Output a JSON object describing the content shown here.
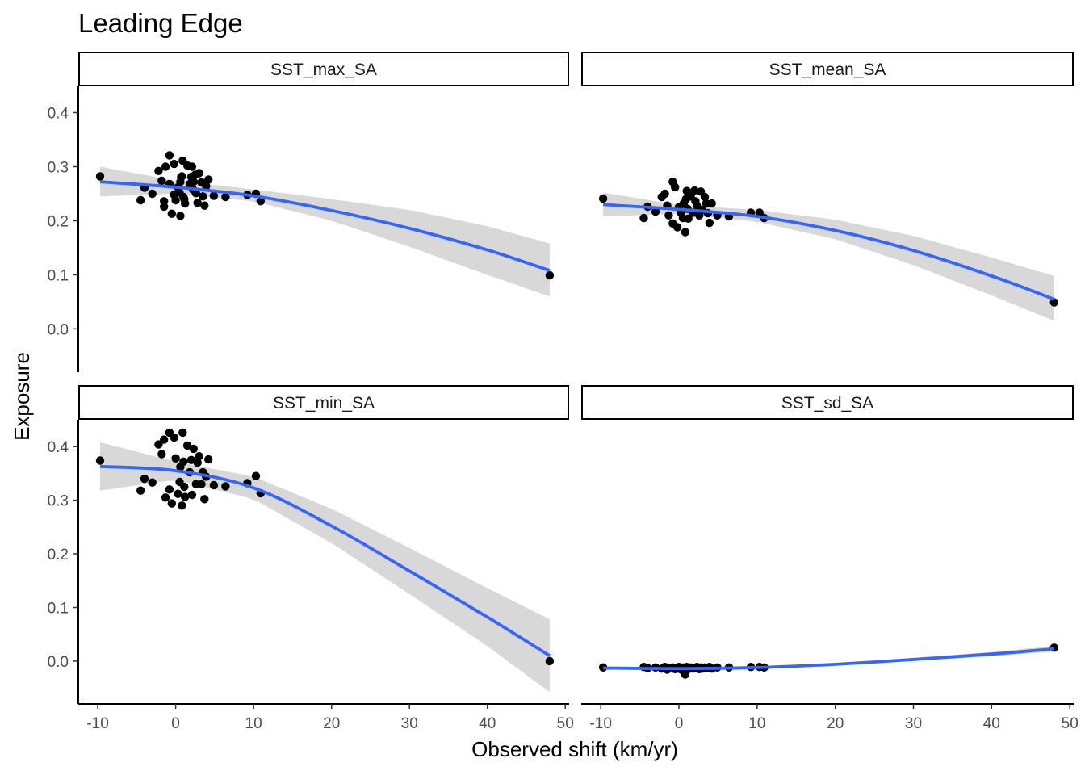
{
  "chart_data": {
    "type": "scatter",
    "title": "Leading Edge",
    "xlabel": "Observed shift (km/yr)",
    "ylabel": "Exposure",
    "xlim": [
      -12.5,
      50.5
    ],
    "ylim": [
      -0.08,
      0.45
    ],
    "x_ticks": [
      -10,
      0,
      10,
      20,
      30,
      40,
      50
    ],
    "x_tick_labels": [
      "-10",
      "0",
      "10",
      "20",
      "30",
      "40",
      "50"
    ],
    "y_ticks": [
      0.0,
      0.1,
      0.2,
      0.3,
      0.4
    ],
    "y_tick_labels": [
      "0.0",
      "0.1",
      "0.2",
      "0.3",
      "0.4"
    ],
    "grid": false,
    "colors": {
      "points": "#000000",
      "smooth": "#3366ff",
      "ribbon": "#bebebe"
    },
    "panels": [
      {
        "strip": "SST_max_SA",
        "points": [
          [
            -9.7,
            0.282
          ],
          [
            -4.5,
            0.238
          ],
          [
            -4.0,
            0.261
          ],
          [
            -3.0,
            0.25
          ],
          [
            -2.2,
            0.292
          ],
          [
            -1.8,
            0.274
          ],
          [
            -1.5,
            0.236
          ],
          [
            -1.5,
            0.226
          ],
          [
            -1.3,
            0.3
          ],
          [
            -0.8,
            0.321
          ],
          [
            -0.8,
            0.268
          ],
          [
            -0.5,
            0.213
          ],
          [
            -0.2,
            0.248
          ],
          [
            -0.2,
            0.305
          ],
          [
            0.0,
            0.238
          ],
          [
            0.3,
            0.262
          ],
          [
            0.5,
            0.252
          ],
          [
            0.6,
            0.272
          ],
          [
            0.7,
            0.281
          ],
          [
            0.8,
            0.282
          ],
          [
            0.9,
            0.311
          ],
          [
            0.6,
            0.209
          ],
          [
            1.0,
            0.244
          ],
          [
            1.1,
            0.24
          ],
          [
            1.2,
            0.232
          ],
          [
            1.5,
            0.302
          ],
          [
            1.8,
            0.268
          ],
          [
            2.0,
            0.281
          ],
          [
            2.1,
            0.3
          ],
          [
            2.2,
            0.258
          ],
          [
            2.3,
            0.272
          ],
          [
            2.5,
            0.285
          ],
          [
            2.6,
            0.251
          ],
          [
            2.8,
            0.233
          ],
          [
            3.0,
            0.288
          ],
          [
            3.3,
            0.271
          ],
          [
            3.5,
            0.245
          ],
          [
            3.7,
            0.228
          ],
          [
            3.9,
            0.264
          ],
          [
            4.2,
            0.276
          ],
          [
            4.9,
            0.246
          ],
          [
            6.4,
            0.244
          ],
          [
            9.2,
            0.248
          ],
          [
            10.3,
            0.25
          ],
          [
            10.9,
            0.236
          ],
          [
            48.0,
            0.099
          ]
        ],
        "smooth": [
          [
            -9.7,
            0.272
          ],
          [
            0,
            0.262
          ],
          [
            10,
            0.246
          ],
          [
            20,
            0.219
          ],
          [
            30,
            0.186
          ],
          [
            40,
            0.146
          ],
          [
            48.0,
            0.108
          ]
        ],
        "ribbon_lower": [
          [
            -9.7,
            0.245
          ],
          [
            0,
            0.25
          ],
          [
            10,
            0.236
          ],
          [
            20,
            0.2
          ],
          [
            30,
            0.152
          ],
          [
            40,
            0.1
          ],
          [
            48.0,
            0.06
          ]
        ],
        "ribbon_upper": [
          [
            -9.7,
            0.3
          ],
          [
            0,
            0.274
          ],
          [
            10,
            0.258
          ],
          [
            20,
            0.24
          ],
          [
            30,
            0.22
          ],
          [
            40,
            0.19
          ],
          [
            48.0,
            0.158
          ]
        ]
      },
      {
        "strip": "SST_mean_SA",
        "points": [
          [
            -9.7,
            0.241
          ],
          [
            -4.5,
            0.205
          ],
          [
            -4.0,
            0.226
          ],
          [
            -3.0,
            0.217
          ],
          [
            -2.2,
            0.244
          ],
          [
            -1.8,
            0.25
          ],
          [
            -1.5,
            0.228
          ],
          [
            -1.3,
            0.21
          ],
          [
            -0.8,
            0.195
          ],
          [
            -0.8,
            0.272
          ],
          [
            -0.5,
            0.262
          ],
          [
            -0.2,
            0.188
          ],
          [
            0.0,
            0.225
          ],
          [
            0.3,
            0.214
          ],
          [
            0.5,
            0.205
          ],
          [
            0.6,
            0.232
          ],
          [
            0.8,
            0.179
          ],
          [
            0.9,
            0.24
          ],
          [
            1.0,
            0.255
          ],
          [
            1.1,
            0.222
          ],
          [
            1.2,
            0.204
          ],
          [
            1.5,
            0.245
          ],
          [
            1.8,
            0.215
          ],
          [
            2.0,
            0.256
          ],
          [
            2.1,
            0.236
          ],
          [
            2.3,
            0.228
          ],
          [
            2.6,
            0.21
          ],
          [
            2.8,
            0.254
          ],
          [
            3.0,
            0.22
          ],
          [
            3.3,
            0.244
          ],
          [
            3.5,
            0.232
          ],
          [
            3.7,
            0.214
          ],
          [
            3.9,
            0.196
          ],
          [
            4.2,
            0.232
          ],
          [
            4.9,
            0.21
          ],
          [
            6.4,
            0.208
          ],
          [
            9.2,
            0.215
          ],
          [
            10.3,
            0.215
          ],
          [
            10.9,
            0.205
          ],
          [
            48.0,
            0.049
          ]
        ],
        "smooth": [
          [
            -9.7,
            0.23
          ],
          [
            0,
            0.221
          ],
          [
            10,
            0.208
          ],
          [
            20,
            0.182
          ],
          [
            30,
            0.145
          ],
          [
            40,
            0.098
          ],
          [
            48.0,
            0.055
          ]
        ],
        "ribbon_lower": [
          [
            -9.7,
            0.208
          ],
          [
            0,
            0.213
          ],
          [
            10,
            0.198
          ],
          [
            20,
            0.166
          ],
          [
            30,
            0.118
          ],
          [
            40,
            0.062
          ],
          [
            48.0,
            0.015
          ]
        ],
        "ribbon_upper": [
          [
            -9.7,
            0.252
          ],
          [
            0,
            0.229
          ],
          [
            10,
            0.22
          ],
          [
            20,
            0.202
          ],
          [
            30,
            0.172
          ],
          [
            40,
            0.132
          ],
          [
            48.0,
            0.098
          ]
        ]
      },
      {
        "strip": "SST_min_SA",
        "points": [
          [
            -9.7,
            0.374
          ],
          [
            -4.5,
            0.318
          ],
          [
            -4.0,
            0.34
          ],
          [
            -3.0,
            0.333
          ],
          [
            -2.2,
            0.404
          ],
          [
            -1.8,
            0.386
          ],
          [
            -1.5,
            0.413
          ],
          [
            -1.3,
            0.305
          ],
          [
            -0.8,
            0.426
          ],
          [
            -0.8,
            0.32
          ],
          [
            -0.5,
            0.294
          ],
          [
            -0.2,
            0.417
          ],
          [
            0.0,
            0.378
          ],
          [
            0.3,
            0.312
          ],
          [
            0.5,
            0.334
          ],
          [
            0.6,
            0.362
          ],
          [
            0.8,
            0.29
          ],
          [
            0.9,
            0.426
          ],
          [
            1.0,
            0.372
          ],
          [
            1.1,
            0.325
          ],
          [
            1.2,
            0.306
          ],
          [
            1.5,
            0.402
          ],
          [
            1.8,
            0.352
          ],
          [
            2.0,
            0.375
          ],
          [
            2.1,
            0.31
          ],
          [
            2.3,
            0.396
          ],
          [
            2.6,
            0.33
          ],
          [
            2.8,
            0.37
          ],
          [
            3.0,
            0.382
          ],
          [
            3.3,
            0.33
          ],
          [
            3.5,
            0.352
          ],
          [
            3.7,
            0.302
          ],
          [
            3.9,
            0.344
          ],
          [
            4.2,
            0.376
          ],
          [
            4.9,
            0.328
          ],
          [
            6.4,
            0.326
          ],
          [
            9.2,
            0.332
          ],
          [
            10.3,
            0.345
          ],
          [
            10.9,
            0.313
          ],
          [
            48.0,
            0.0
          ]
        ],
        "smooth": [
          [
            -9.7,
            0.363
          ],
          [
            0,
            0.355
          ],
          [
            10,
            0.323
          ],
          [
            20,
            0.252
          ],
          [
            30,
            0.168
          ],
          [
            40,
            0.082
          ],
          [
            48.0,
            0.01
          ]
        ],
        "ribbon_lower": [
          [
            -9.7,
            0.318
          ],
          [
            0,
            0.338
          ],
          [
            10,
            0.302
          ],
          [
            20,
            0.22
          ],
          [
            30,
            0.125
          ],
          [
            40,
            0.028
          ],
          [
            48.0,
            -0.058
          ]
        ],
        "ribbon_upper": [
          [
            -9.7,
            0.408
          ],
          [
            0,
            0.372
          ],
          [
            10,
            0.344
          ],
          [
            20,
            0.284
          ],
          [
            30,
            0.211
          ],
          [
            40,
            0.136
          ],
          [
            48.0,
            0.078
          ]
        ]
      },
      {
        "strip": "SST_sd_SA",
        "points": [
          [
            -9.7,
            -0.012
          ],
          [
            -4.5,
            -0.011
          ],
          [
            -4.0,
            -0.013
          ],
          [
            -3.0,
            -0.012
          ],
          [
            -2.2,
            -0.014
          ],
          [
            -1.8,
            -0.011
          ],
          [
            -1.5,
            -0.016
          ],
          [
            -1.3,
            -0.013
          ],
          [
            -0.8,
            -0.012
          ],
          [
            -0.5,
            -0.015
          ],
          [
            -0.2,
            -0.014
          ],
          [
            0.0,
            -0.011
          ],
          [
            0.3,
            -0.016
          ],
          [
            0.5,
            -0.013
          ],
          [
            0.6,
            -0.012
          ],
          [
            0.8,
            -0.025
          ],
          [
            0.9,
            -0.013
          ],
          [
            1.0,
            -0.011
          ],
          [
            1.2,
            -0.015
          ],
          [
            1.5,
            -0.012
          ],
          [
            1.8,
            -0.014
          ],
          [
            2.1,
            -0.013
          ],
          [
            2.3,
            -0.011
          ],
          [
            2.6,
            -0.015
          ],
          [
            2.8,
            -0.012
          ],
          [
            3.0,
            -0.014
          ],
          [
            3.3,
            -0.012
          ],
          [
            3.5,
            -0.013
          ],
          [
            3.9,
            -0.011
          ],
          [
            4.2,
            -0.014
          ],
          [
            4.9,
            -0.012
          ],
          [
            6.4,
            -0.012
          ],
          [
            9.2,
            -0.011
          ],
          [
            10.3,
            -0.011
          ],
          [
            10.9,
            -0.012
          ],
          [
            48.0,
            0.025
          ]
        ],
        "smooth": [
          [
            -9.7,
            -0.013
          ],
          [
            0,
            -0.014
          ],
          [
            10,
            -0.012
          ],
          [
            20,
            -0.006
          ],
          [
            30,
            0.003
          ],
          [
            40,
            0.013
          ],
          [
            48.0,
            0.023
          ]
        ],
        "ribbon_lower": [
          [
            -9.7,
            -0.016
          ],
          [
            0,
            -0.016
          ],
          [
            10,
            -0.014
          ],
          [
            20,
            -0.008
          ],
          [
            30,
            0.0
          ],
          [
            40,
            0.009
          ],
          [
            48.0,
            0.018
          ]
        ],
        "ribbon_upper": [
          [
            -9.7,
            -0.01
          ],
          [
            0,
            -0.012
          ],
          [
            10,
            -0.01
          ],
          [
            20,
            -0.004
          ],
          [
            30,
            0.006
          ],
          [
            40,
            0.017
          ],
          [
            48.0,
            0.028
          ]
        ]
      }
    ]
  }
}
